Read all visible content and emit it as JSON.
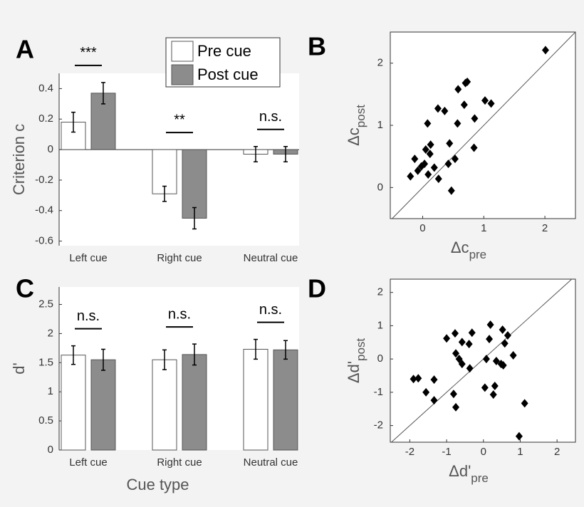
{
  "chart_data": [
    {
      "type": "bar",
      "label": "A",
      "ylabel": "Criterion c",
      "categories": [
        "Left cue",
        "Right cue",
        "Neutral cue"
      ],
      "series": [
        {
          "name": "Pre cue",
          "color": "#ffffff",
          "values": [
            0.18,
            -0.29,
            -0.03
          ],
          "errors": [
            0.065,
            0.05,
            0.05
          ]
        },
        {
          "name": "Post cue",
          "color": "#8c8c8c",
          "values": [
            0.37,
            -0.45,
            -0.03
          ],
          "errors": [
            0.07,
            0.07,
            0.05
          ]
        }
      ],
      "annotations": [
        "***",
        "**",
        "n.s."
      ],
      "ylim": [
        -0.63,
        0.5
      ],
      "yticks": [
        -0.6,
        -0.4,
        -0.2,
        0,
        0.2,
        0.4
      ],
      "legend": "top"
    },
    {
      "type": "scatter",
      "label": "B",
      "xlabel": "Δc",
      "xlabel_sub": "pre",
      "ylabel": "Δc",
      "ylabel_sub": "post",
      "color": "#000000",
      "diagonal": true,
      "x": [
        2.01,
        0.73,
        0.7,
        0.58,
        1.02,
        1.12,
        0.68,
        0.25,
        0.36,
        0.57,
        0.85,
        0.08,
        0.84,
        0.44,
        0.13,
        0.05,
        0.12,
        -0.13,
        0.03,
        -0.02,
        -0.08,
        0.19,
        0.53,
        0.42,
        0.09,
        -0.2,
        0.26,
        0.47
      ],
      "values": [
        2.21,
        1.7,
        1.68,
        1.58,
        1.4,
        1.35,
        1.33,
        1.27,
        1.23,
        1.03,
        1.11,
        1.03,
        0.64,
        0.71,
        0.69,
        0.61,
        0.54,
        0.46,
        0.38,
        0.34,
        0.27,
        0.32,
        0.46,
        0.38,
        0.21,
        0.18,
        0.14,
        -0.05
      ],
      "xlim": [
        -0.53,
        2.5
      ],
      "ylim": [
        -0.5,
        2.5
      ],
      "xticks": [
        0,
        1,
        2
      ],
      "yticks": [
        0,
        1,
        2
      ]
    },
    {
      "type": "bar",
      "label": "C",
      "ylabel": "d'",
      "xlabel": "Cue type",
      "categories": [
        "Left cue",
        "Right cue",
        "Neutral cue"
      ],
      "series": [
        {
          "color": "#ffffff",
          "values": [
            1.63,
            1.55,
            1.73
          ],
          "errors": [
            0.16,
            0.17,
            0.17
          ]
        },
        {
          "color": "#8c8c8c",
          "values": [
            1.55,
            1.64,
            1.72
          ],
          "errors": [
            0.18,
            0.18,
            0.16
          ]
        }
      ],
      "annotations": [
        "n.s.",
        "n.s.",
        "n.s."
      ],
      "ylim": [
        0,
        2.8
      ],
      "yticks": [
        0,
        0.5,
        1,
        1.5,
        2,
        2.5
      ]
    },
    {
      "type": "scatter",
      "label": "D",
      "xlabel": "Δd'",
      "xlabel_sub": "pre",
      "ylabel": "Δd'",
      "ylabel_sub": "post",
      "color": "#000000",
      "diagonal": true,
      "x": [
        0.19,
        -0.31,
        -1.0,
        -0.77,
        -0.58,
        -0.39,
        0.52,
        0.66,
        0.16,
        0.58,
        -0.75,
        -0.66,
        -0.58,
        -0.37,
        0.08,
        0.35,
        0.48,
        0.54,
        0.81,
        -1.9,
        -1.77,
        -1.56,
        -1.34,
        -1.34,
        -0.81,
        -0.75,
        0.04,
        0.31,
        0.27,
        1.12,
        0.97
      ],
      "values": [
        1.03,
        0.79,
        0.62,
        0.77,
        0.51,
        0.45,
        0.88,
        0.71,
        0.6,
        0.47,
        0.17,
        0.0,
        -0.15,
        -0.28,
        0.0,
        -0.06,
        -0.15,
        -0.19,
        0.11,
        -0.6,
        -0.58,
        -1.0,
        -0.62,
        -1.24,
        -1.05,
        -1.45,
        -0.86,
        -0.81,
        -1.07,
        -1.33,
        -2.32
      ],
      "xlim": [
        -2.53,
        2.5
      ],
      "ylim": [
        -2.5,
        2.4
      ],
      "xticks": [
        -2,
        -1,
        0,
        1,
        2
      ],
      "yticks": [
        -2,
        -1,
        0,
        1,
        2
      ]
    }
  ]
}
